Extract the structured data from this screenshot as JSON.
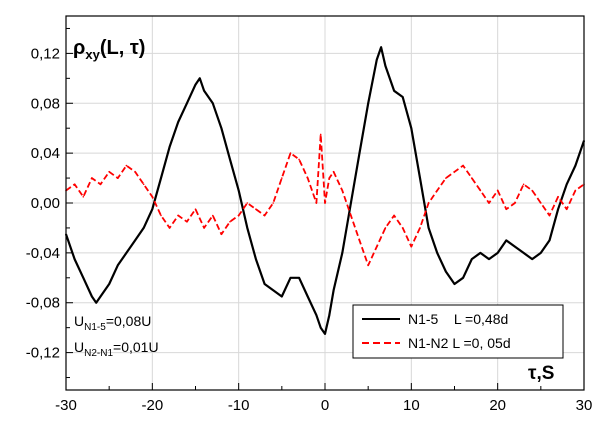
{
  "chart_data": {
    "type": "line",
    "title": "",
    "xlabel": "τ,S",
    "ylabel": "ρxy(L, τ)",
    "ylabel_parts": {
      "main": "ρ",
      "sub": "xy",
      "tail": "(L, τ)"
    },
    "xlim": [
      -30,
      30
    ],
    "ylim": [
      -0.15,
      0.15
    ],
    "grid": true,
    "x_ticks": [
      {
        "value": -30,
        "label": "-30"
      },
      {
        "value": -20,
        "label": "-20"
      },
      {
        "value": -10,
        "label": "-10"
      },
      {
        "value": 0,
        "label": "0"
      },
      {
        "value": 10,
        "label": "10"
      },
      {
        "value": 20,
        "label": "20"
      },
      {
        "value": 30,
        "label": "30"
      }
    ],
    "y_ticks": [
      {
        "value": 0.12,
        "label": "0,12"
      },
      {
        "value": 0.08,
        "label": "0,08"
      },
      {
        "value": 0.04,
        "label": "0,04"
      },
      {
        "value": 0.0,
        "label": "0,00"
      },
      {
        "value": -0.04,
        "label": "-0,04"
      },
      {
        "value": -0.08,
        "label": "-0,08"
      },
      {
        "value": -0.12,
        "label": "-0,12"
      }
    ],
    "annotations": [
      {
        "main": "U",
        "sub": "N1-5",
        "tail": "=0,08U"
      },
      {
        "main": "U",
        "sub": "N2-N1",
        "tail": "=0,01U"
      }
    ],
    "legend_position": "bottom-right",
    "series": [
      {
        "name": "N1-5    L =0,48d",
        "color": "#000000",
        "style": "solid",
        "x": [
          -30,
          -29,
          -28,
          -27,
          -26.5,
          -26,
          -25,
          -24,
          -23,
          -22,
          -21,
          -20,
          -19,
          -18,
          -17,
          -16,
          -15,
          -14.5,
          -14,
          -13,
          -12,
          -11,
          -10,
          -9,
          -8,
          -7,
          -6,
          -5,
          -4,
          -3,
          -2,
          -1,
          -0.5,
          0,
          0.5,
          1,
          2,
          3,
          4,
          5,
          6,
          6.5,
          7,
          8,
          9,
          10,
          11,
          12,
          13,
          14,
          15,
          16,
          17,
          18,
          19,
          20,
          21,
          22,
          23,
          24,
          25,
          26,
          27,
          28,
          29,
          30
        ],
        "y": [
          -0.025,
          -0.045,
          -0.06,
          -0.075,
          -0.08,
          -0.075,
          -0.065,
          -0.05,
          -0.04,
          -0.03,
          -0.02,
          -0.005,
          0.02,
          0.045,
          0.065,
          0.08,
          0.095,
          0.1,
          0.09,
          0.08,
          0.06,
          0.035,
          0.01,
          -0.02,
          -0.045,
          -0.065,
          -0.07,
          -0.075,
          -0.06,
          -0.06,
          -0.075,
          -0.09,
          -0.1,
          -0.105,
          -0.09,
          -0.07,
          -0.04,
          0.0,
          0.04,
          0.08,
          0.115,
          0.125,
          0.11,
          0.09,
          0.085,
          0.06,
          0.02,
          -0.02,
          -0.04,
          -0.055,
          -0.065,
          -0.06,
          -0.045,
          -0.04,
          -0.045,
          -0.04,
          -0.03,
          -0.035,
          -0.04,
          -0.045,
          -0.04,
          -0.03,
          -0.005,
          0.015,
          0.03,
          0.05
        ]
      },
      {
        "name": "N1-N2 L =0, 05d",
        "color": "#ff0000",
        "style": "dashed",
        "x": [
          -30,
          -29,
          -28,
          -27,
          -26,
          -25,
          -24,
          -23,
          -22,
          -21,
          -20,
          -19,
          -18,
          -17,
          -16,
          -15,
          -14,
          -13,
          -12,
          -11,
          -10,
          -9,
          -8,
          -7,
          -6,
          -5,
          -4,
          -3,
          -2,
          -1,
          -0.5,
          0,
          0.5,
          1,
          2,
          3,
          4,
          5,
          6,
          7,
          8,
          9,
          10,
          11,
          12,
          13,
          14,
          15,
          16,
          17,
          18,
          19,
          20,
          21,
          22,
          23,
          24,
          25,
          26,
          27,
          28,
          29,
          30
        ],
        "y": [
          0.01,
          0.015,
          0.005,
          0.02,
          0.015,
          0.025,
          0.02,
          0.03,
          0.025,
          0.015,
          0.005,
          -0.01,
          -0.02,
          -0.01,
          -0.015,
          -0.005,
          -0.02,
          -0.01,
          -0.025,
          -0.015,
          -0.01,
          0.0,
          -0.005,
          -0.01,
          0.0,
          0.02,
          0.04,
          0.035,
          0.02,
          0.0,
          0.055,
          0.0,
          0.02,
          0.025,
          0.01,
          -0.01,
          -0.03,
          -0.05,
          -0.035,
          -0.02,
          -0.01,
          -0.02,
          -0.035,
          -0.02,
          0.0,
          0.01,
          0.02,
          0.025,
          0.03,
          0.02,
          0.01,
          0.0,
          0.01,
          -0.005,
          0.0,
          0.015,
          0.01,
          0.0,
          -0.01,
          0.005,
          -0.005,
          0.01,
          0.015
        ]
      }
    ]
  }
}
